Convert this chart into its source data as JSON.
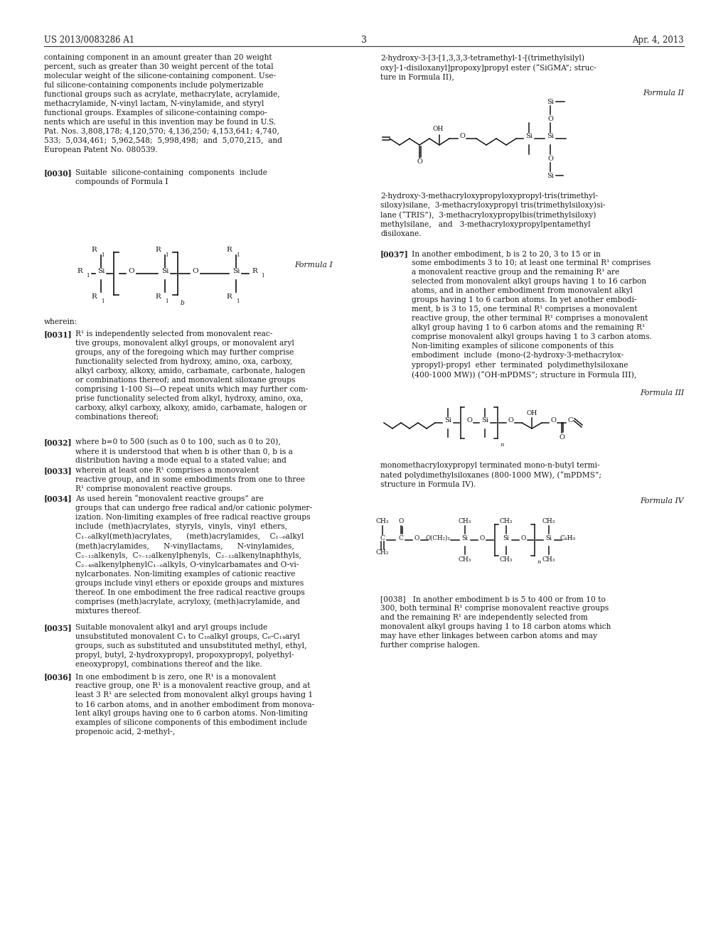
{
  "background_color": "#ffffff",
  "page_number": "3",
  "header_left": "US 2013/0083286 A1",
  "header_right": "Apr. 4, 2013",
  "formula_I_label": "Formula I",
  "formula_II_label": "Formula II",
  "formula_III_label": "Formula III",
  "formula_IV_label": "Formula IV",
  "wherein_text": "wherein:"
}
